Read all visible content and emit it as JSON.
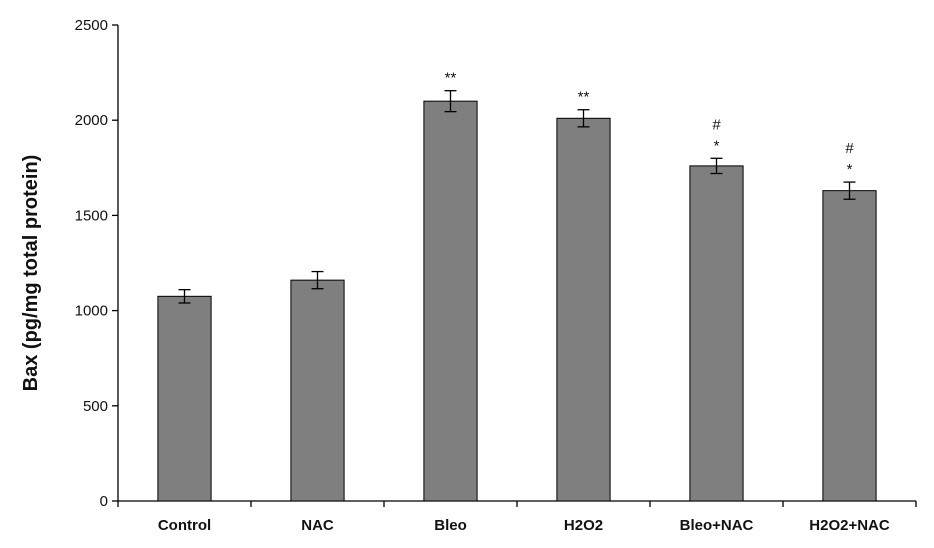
{
  "chart_data": {
    "type": "bar",
    "title": "",
    "xlabel": "",
    "ylabel": "Bax (pg/mg total protein)",
    "ylim": [
      0,
      2500
    ],
    "yticks": [
      0,
      500,
      1000,
      1500,
      2000,
      2500
    ],
    "grid": false,
    "legend": "none",
    "bar_color": "#7f7f7f",
    "categories": [
      "Control",
      "NAC",
      "Bleo",
      "H2O2",
      "Bleo+NAC",
      "H2O2+NAC"
    ],
    "values": [
      1075,
      1160,
      2100,
      2010,
      1760,
      1630
    ],
    "errors": [
      35,
      45,
      55,
      45,
      40,
      45
    ],
    "annotations": [
      [],
      [],
      [
        "**"
      ],
      [
        "**"
      ],
      [
        "#",
        "*"
      ],
      [
        "#",
        "*"
      ]
    ]
  }
}
